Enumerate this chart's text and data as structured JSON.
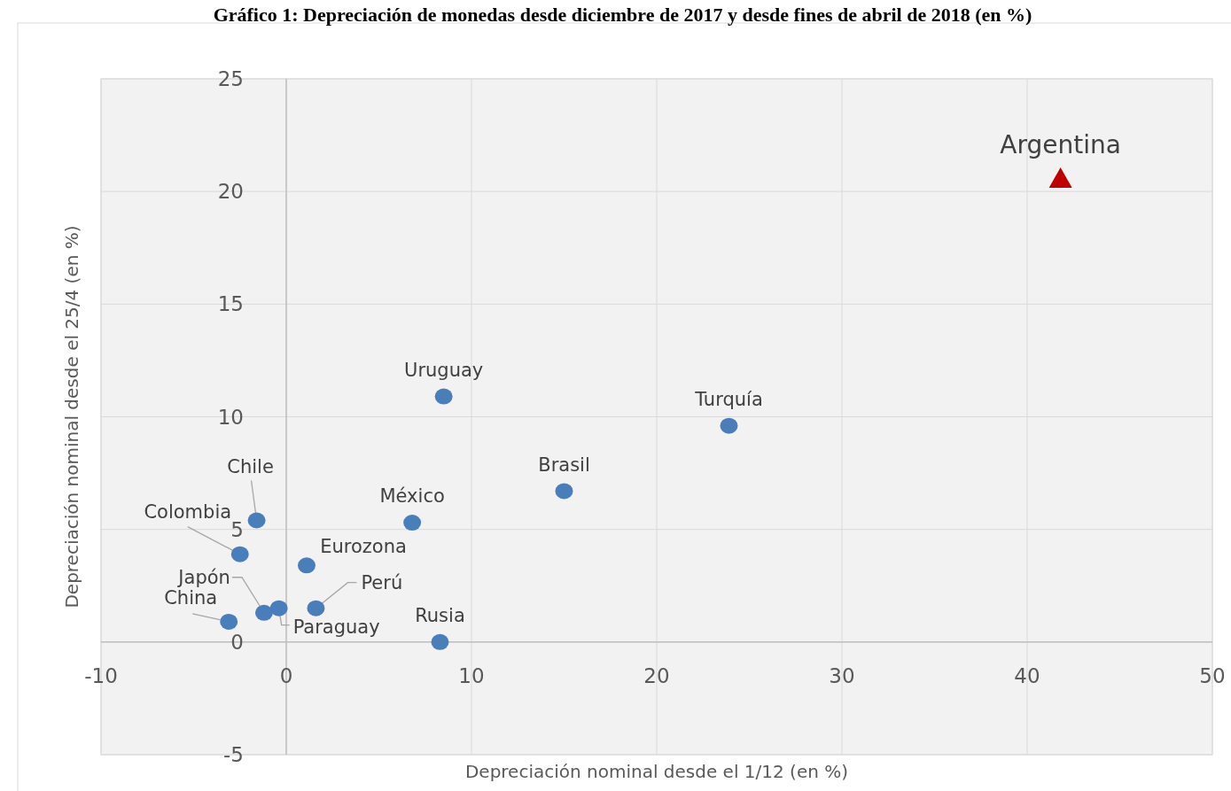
{
  "chart_data": {
    "type": "scatter",
    "title": "Gráfico 1: Depreciación de monedas desde diciembre de 2017 y desde fines de abril de 2018 (en %)",
    "xlabel": "Depreciación nominal desde el 1/12 (en %)",
    "ylabel": "Depreciación nominal desde el 25/4 (en %)",
    "series": [
      {
        "color": "#4a7ebb",
        "marker": "circle",
        "x": [
          23.9,
          15.0,
          8.5,
          6.8,
          8.3,
          1.1,
          1.6,
          -0.4,
          -1.2,
          -3.1,
          -2.5,
          -1.6
        ],
        "values": [
          9.6,
          6.7,
          10.9,
          5.3,
          0.0,
          3.4,
          1.5,
          1.5,
          1.3,
          0.9,
          3.9,
          5.4
        ]
      },
      {
        "color": "#c00000",
        "marker": "triangle",
        "x": [
          41.8
        ],
        "values": [
          20.6
        ]
      }
    ],
    "annotations": [
      {
        "text": "Argentina",
        "x": 41.8,
        "y": 20.6
      },
      {
        "text": "Turquía",
        "x": 23.9,
        "y": 9.6
      },
      {
        "text": "Brasil",
        "x": 15.0,
        "y": 6.7
      },
      {
        "text": "Uruguay",
        "x": 8.5,
        "y": 10.9
      },
      {
        "text": "México",
        "x": 6.8,
        "y": 5.3
      },
      {
        "text": "Rusia",
        "x": 8.3,
        "y": 0.0
      },
      {
        "text": "Eurozona",
        "x": 1.1,
        "y": 3.4
      },
      {
        "text": "Perú",
        "x": 1.6,
        "y": 1.5
      },
      {
        "text": "Paraguay",
        "x": -0.4,
        "y": 1.5
      },
      {
        "text": "Japón",
        "x": -1.2,
        "y": 1.3
      },
      {
        "text": "China",
        "x": -3.1,
        "y": 0.9
      },
      {
        "text": "Colombia",
        "x": -2.5,
        "y": 3.9
      },
      {
        "text": "Chile",
        "x": -1.6,
        "y": 5.4
      }
    ],
    "xlim": [
      -10,
      50
    ],
    "xticks": [
      -10,
      0,
      10,
      20,
      30,
      40,
      50
    ],
    "ylim": [
      -5,
      25
    ],
    "yticks": [
      -5,
      0,
      5,
      10,
      15,
      20,
      25
    ],
    "grid": true
  }
}
